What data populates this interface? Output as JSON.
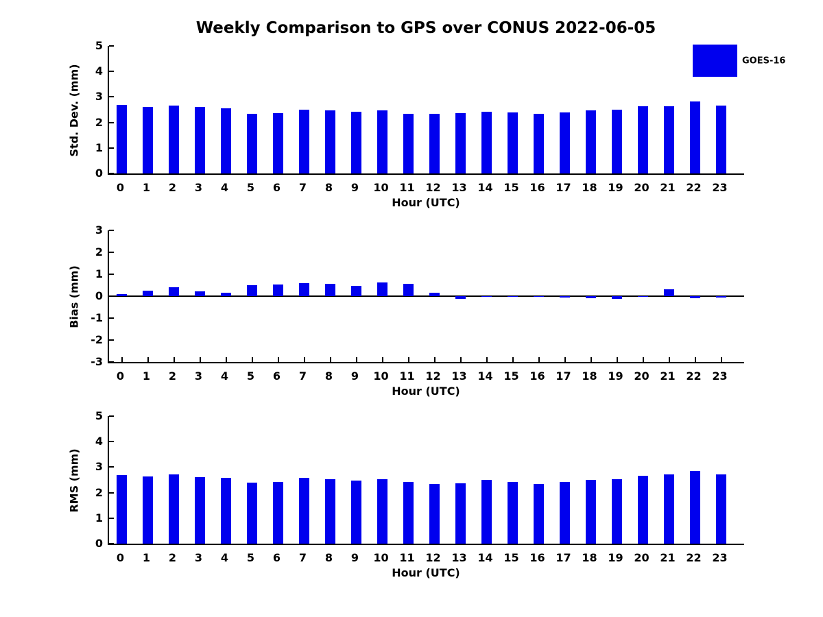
{
  "title": "Weekly Comparison to GPS over CONUS 2022-06-05",
  "legend": {
    "label": "GOES-16",
    "color": "#0000ee",
    "position": "top-right-outside"
  },
  "bar_color": "#0000ee",
  "chart_data": [
    {
      "type": "bar",
      "title": "",
      "ylabel": "Std. Dev. (mm)",
      "xlabel": "Hour (UTC)",
      "ylim": [
        0,
        5
      ],
      "yticks": [
        0,
        1,
        2,
        3,
        4,
        5
      ],
      "grid": "off",
      "categories": [
        "0",
        "1",
        "2",
        "3",
        "4",
        "5",
        "6",
        "7",
        "8",
        "9",
        "10",
        "11",
        "12",
        "13",
        "14",
        "15",
        "16",
        "17",
        "18",
        "19",
        "20",
        "21",
        "22",
        "23"
      ],
      "series": [
        {
          "name": "GOES-16",
          "color": "#0000ee",
          "values": [
            2.7,
            2.62,
            2.67,
            2.61,
            2.56,
            2.33,
            2.37,
            2.5,
            2.46,
            2.43,
            2.46,
            2.35,
            2.33,
            2.36,
            2.43,
            2.4,
            2.33,
            2.4,
            2.47,
            2.5,
            2.64,
            2.63,
            2.82,
            2.67
          ]
        }
      ]
    },
    {
      "type": "bar",
      "title": "",
      "ylabel": "Bias (mm)",
      "xlabel": "Hour (UTC)",
      "ylim": [
        -3,
        3
      ],
      "yticks": [
        -3,
        -2,
        -1,
        0,
        1,
        2,
        3
      ],
      "grid": "off",
      "zero_line": true,
      "categories": [
        "0",
        "1",
        "2",
        "3",
        "4",
        "5",
        "6",
        "7",
        "8",
        "9",
        "10",
        "11",
        "12",
        "13",
        "14",
        "15",
        "16",
        "17",
        "18",
        "19",
        "20",
        "21",
        "22",
        "23"
      ],
      "series": [
        {
          "name": "GOES-16",
          "color": "#0000ee",
          "values": [
            0.08,
            0.26,
            0.42,
            0.23,
            0.17,
            0.49,
            0.53,
            0.58,
            0.57,
            0.46,
            0.63,
            0.57,
            0.17,
            -0.12,
            -0.03,
            -0.02,
            0.0,
            -0.06,
            -0.1,
            -0.12,
            0.0,
            0.31,
            -0.08,
            -0.06
          ]
        }
      ]
    },
    {
      "type": "bar",
      "title": "",
      "ylabel": "RMS (mm)",
      "xlabel": "Hour (UTC)",
      "ylim": [
        0,
        5
      ],
      "yticks": [
        0,
        1,
        2,
        3,
        4,
        5
      ],
      "grid": "off",
      "categories": [
        "0",
        "1",
        "2",
        "3",
        "4",
        "5",
        "6",
        "7",
        "8",
        "9",
        "10",
        "11",
        "12",
        "13",
        "14",
        "15",
        "16",
        "17",
        "18",
        "19",
        "20",
        "21",
        "22",
        "23"
      ],
      "series": [
        {
          "name": "GOES-16",
          "color": "#0000ee",
          "values": [
            2.7,
            2.63,
            2.71,
            2.61,
            2.58,
            2.4,
            2.43,
            2.58,
            2.53,
            2.47,
            2.52,
            2.43,
            2.34,
            2.37,
            2.49,
            2.43,
            2.34,
            2.41,
            2.49,
            2.53,
            2.67,
            2.72,
            2.84,
            2.71
          ]
        }
      ]
    }
  ]
}
